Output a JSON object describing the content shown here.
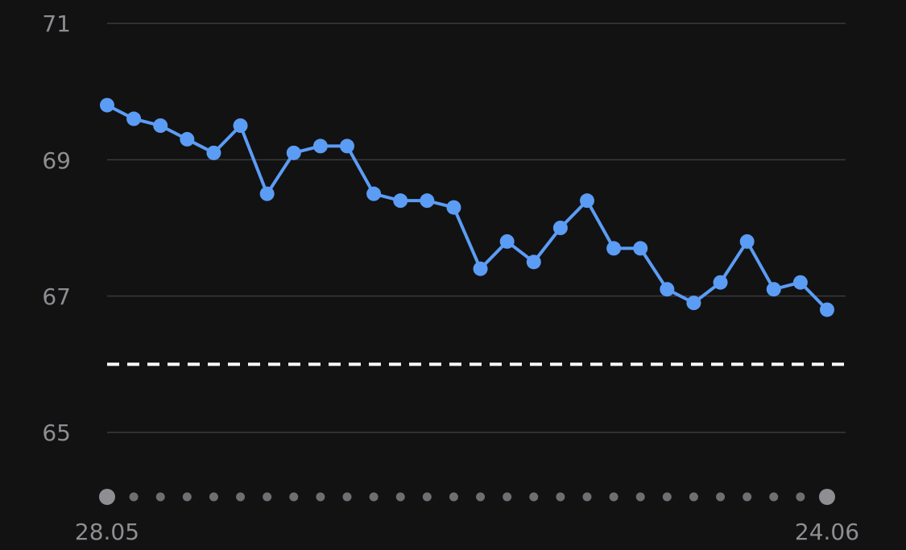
{
  "chart_data": {
    "type": "line",
    "title": "",
    "xlabel": "",
    "ylabel": "",
    "x_tick_labels": [
      "28.05",
      "24.06"
    ],
    "y_ticks": [
      "71",
      "69",
      "67",
      "65"
    ],
    "ylim": [
      63.9,
      71
    ],
    "grid": true,
    "reference_line": {
      "value": 66,
      "style": "dashed",
      "color": "#ffffff"
    },
    "series": [
      {
        "color": "#5b9cf5",
        "values": [
          69.8,
          69.6,
          69.5,
          69.3,
          69.1,
          69.5,
          68.5,
          69.1,
          69.2,
          69.2,
          68.5,
          68.4,
          68.4,
          68.3,
          67.4,
          67.8,
          67.5,
          68.0,
          68.4,
          67.7,
          67.7,
          67.1,
          66.9,
          67.2,
          67.8,
          67.1,
          67.2,
          66.8
        ]
      }
    ]
  }
}
